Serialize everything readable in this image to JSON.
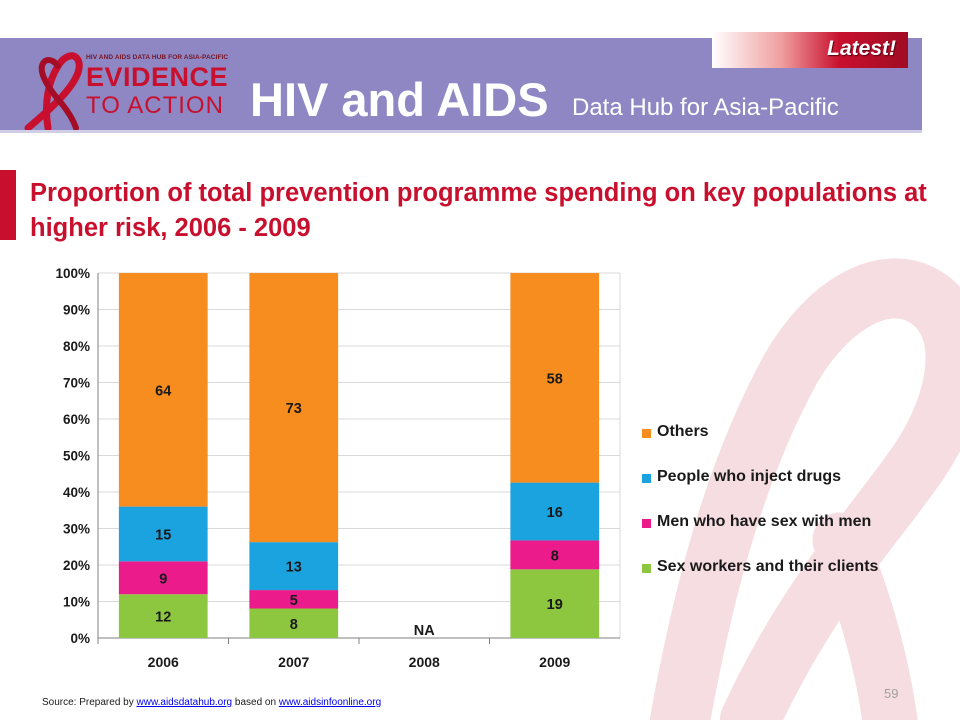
{
  "header": {
    "logo_small_text": "HIV AND AIDS DATA HUB FOR ASIA-PACIFIC",
    "logo_line1": "EVIDENCE",
    "logo_line2": "TO ACTION",
    "title": "HIV and AIDS",
    "subtitle": "Data Hub for Asia-Pacific",
    "badge": "Latest!"
  },
  "slide": {
    "title": "Proportion of total prevention programme spending on key populations at higher risk, 2006 - 2009",
    "page_number": "59"
  },
  "footer": {
    "prefix": "Source: Prepared by ",
    "link1": "www.aidsdatahub.org",
    "middle": " based on ",
    "link2": "www.aidsinfoonline.org"
  },
  "colors": {
    "brand_red": "#c8102e",
    "banner": "#8e87c4"
  },
  "chart_data": {
    "type": "bar",
    "stacked": true,
    "categories": [
      "2006",
      "2007",
      "2008",
      "2009"
    ],
    "y_tick_labels": [
      "0%",
      "10%",
      "20%",
      "30%",
      "40%",
      "50%",
      "60%",
      "70%",
      "80%",
      "90%",
      "100%"
    ],
    "ylim": [
      0,
      100
    ],
    "series": [
      {
        "name": "Sex workers and their clients",
        "color": "#8dc63f",
        "values": [
          12,
          8,
          null,
          19
        ]
      },
      {
        "name": "Men who have sex with men",
        "color": "#ec1b8c",
        "values": [
          9,
          5,
          null,
          8
        ]
      },
      {
        "name": "People who inject drugs",
        "color": "#1ba3e0",
        "values": [
          15,
          13,
          null,
          16
        ]
      },
      {
        "name": "Others",
        "color": "#f78d1f",
        "values": [
          64,
          73,
          null,
          58
        ]
      }
    ],
    "missing_labels": [
      "",
      "",
      "NA",
      ""
    ],
    "legend_position": "right"
  }
}
